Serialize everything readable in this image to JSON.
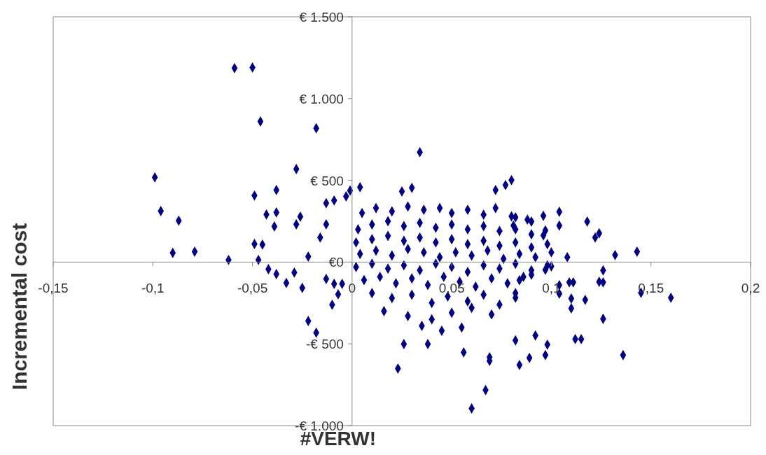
{
  "chart_data": {
    "type": "scatter",
    "xlabel": "#VERW!",
    "ylabel": "Incremental cost",
    "marker": "diamond",
    "xlim": [
      -0.15,
      0.2
    ],
    "ylim": [
      -1000,
      1500
    ],
    "xticks": [
      {
        "value": -0.15,
        "label": "-0,15"
      },
      {
        "value": -0.1,
        "label": "-0,1"
      },
      {
        "value": -0.05,
        "label": "-0,05"
      },
      0,
      {
        "value": 0.05,
        "label": "0,05"
      },
      {
        "value": 0.1,
        "label": "0,1"
      },
      {
        "value": 0.15,
        "label": "0,15"
      },
      {
        "value": 0.2,
        "label": "0,2"
      }
    ],
    "yticks": [
      {
        "value": -1000,
        "label": "-€ 1.000"
      },
      {
        "value": -500,
        "label": "-€ 500"
      },
      {
        "value": 0,
        "label": "€0"
      },
      {
        "value": 500,
        "label": "€ 500"
      },
      {
        "value": 1000,
        "label": "€ 1.000"
      },
      {
        "value": 1500,
        "label": "€ 1.500"
      }
    ],
    "series": [
      {
        "color": "#000080",
        "x": [
          -0.059,
          -0.05,
          -0.046,
          -0.018,
          -0.099,
          -0.096,
          -0.087,
          -0.09,
          -0.079,
          -0.062,
          -0.049,
          -0.038,
          -0.043,
          -0.038,
          -0.039,
          -0.049,
          -0.045,
          -0.047,
          -0.042,
          -0.038,
          -0.033,
          -0.029,
          -0.025,
          -0.028,
          -0.026,
          -0.028,
          -0.022,
          -0.013,
          -0.016,
          -0.013,
          -0.009,
          -0.022,
          -0.018,
          -0.01,
          -0.007,
          -0.005,
          -0.013,
          -0.009,
          -0.003,
          -0.001,
          0.004,
          0.034,
          0.03,
          0.025,
          0.072,
          0.077,
          0.08,
          0.023,
          0.026,
          0.038,
          0.056,
          0.069,
          0.069,
          0.067,
          0.06,
          0.082,
          0.084,
          0.089,
          0.098,
          0.097,
          0.092,
          0.112,
          0.115,
          0.126,
          0.136,
          0.145,
          0.16,
          0.132,
          0.143,
          0.126,
          0.124,
          0.126,
          0.104,
          0.104,
          0.118,
          0.124,
          0.122,
          0.109,
          0.111,
          0.1,
          0.11,
          0.117,
          0.097,
          0.096,
          0.096,
          0.104,
          0.11,
          0.104,
          0.09,
          0.082,
          0.081,
          0.084,
          0.09,
          0.097,
          0.082,
          0.005,
          0.012,
          0.02,
          0.028,
          0.036,
          0.044,
          0.05,
          0.058,
          0.066,
          0.072,
          0.08,
          0.088,
          0.003,
          0.01,
          0.018,
          0.026,
          0.034,
          0.042,
          0.05,
          0.058,
          0.066,
          0.074,
          0.082,
          0.09,
          0.002,
          0.01,
          0.018,
          0.026,
          0.034,
          0.042,
          0.05,
          0.058,
          0.066,
          0.074,
          0.082,
          0.09,
          0.098,
          0.004,
          0.012,
          0.02,
          0.028,
          0.036,
          0.044,
          0.052,
          0.06,
          0.068,
          0.076,
          0.084,
          0.092,
          0.1,
          0.108,
          0.002,
          0.01,
          0.018,
          0.026,
          0.034,
          0.042,
          0.05,
          0.058,
          0.066,
          0.074,
          0.082,
          0.09,
          0.098,
          0.006,
          0.014,
          0.022,
          0.03,
          0.038,
          0.046,
          0.054,
          0.062,
          0.07,
          0.078,
          0.086,
          0.01,
          0.02,
          0.03,
          0.04,
          0.048,
          0.058,
          0.066,
          0.074,
          0.082,
          0.016,
          0.028,
          0.04,
          0.05,
          0.06,
          0.07,
          0.045,
          0.035,
          0.055
        ],
        "values": [
          1186,
          1190,
          860,
          818,
          518,
          312,
          253,
          56,
          64,
          13,
          407,
          441,
          291,
          304,
          218,
          111,
          107,
          13,
          -43,
          -73,
          -128,
          -64,
          -158,
          569,
          278,
          231,
          34,
          231,
          150,
          -103,
          -133,
          -360,
          -432,
          -261,
          -197,
          -133,
          360,
          377,
          402,
          437,
          458,
          672,
          454,
          432,
          441,
          471,
          501,
          -651,
          -501,
          -501,
          -552,
          -582,
          -604,
          -783,
          -895,
          -479,
          -629,
          -586,
          -505,
          -569,
          -449,
          -471,
          -471,
          -347,
          -569,
          -188,
          -218,
          43,
          64,
          -51,
          -120,
          -124,
          308,
          223,
          248,
          176,
          150,
          -124,
          -124,
          -26,
          -223,
          -231,
          193,
          163,
          283,
          -141,
          -283,
          -193,
          248,
          274,
          223,
          -111,
          -77,
          -47,
          -218,
          300,
          330,
          310,
          340,
          320,
          330,
          300,
          320,
          290,
          330,
          280,
          260,
          200,
          230,
          250,
          220,
          240,
          210,
          230,
          200,
          220,
          190,
          200,
          170,
          120,
          140,
          160,
          130,
          150,
          120,
          140,
          110,
          130,
          100,
          120,
          90,
          110,
          50,
          70,
          40,
          80,
          60,
          30,
          60,
          40,
          70,
          20,
          50,
          30,
          60,
          30,
          -30,
          -10,
          -40,
          -20,
          -50,
          -10,
          -30,
          -60,
          -20,
          -40,
          -10,
          -50,
          -20,
          -110,
          -90,
          -130,
          -100,
          -140,
          -90,
          -120,
          -150,
          -100,
          -130,
          -90,
          -190,
          -220,
          -200,
          -250,
          -210,
          -240,
          -200,
          -260,
          -190,
          -300,
          -330,
          -350,
          -310,
          -280,
          -320,
          -420,
          -390,
          -400
        ]
      }
    ]
  }
}
